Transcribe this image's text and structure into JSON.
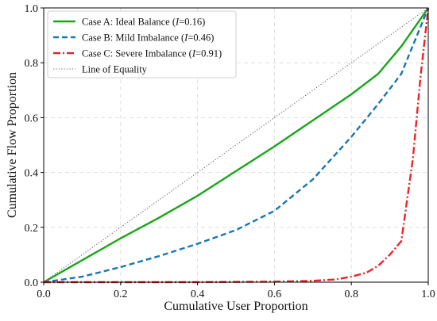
{
  "chart_data": {
    "type": "line",
    "xlabel": "Cumulative User Proportion",
    "ylabel": "Cumulative Flow Proportion",
    "xlim": [
      0,
      1
    ],
    "ylim": [
      0,
      1
    ],
    "xticks": [
      "0.0",
      "0.2",
      "0.4",
      "0.6",
      "0.8",
      "1.0"
    ],
    "yticks": [
      "0.0",
      "0.2",
      "0.4",
      "0.6",
      "0.8",
      "1.0"
    ],
    "grid": true,
    "legend_position": "top-left",
    "series": [
      {
        "name_prefix": "Case A: Ideal Balance (",
        "name_italic": "I",
        "name_suffix": "=0.16)",
        "color": "#1aa51a",
        "style": "solid",
        "x": [
          0,
          0.1,
          0.2,
          0.3,
          0.4,
          0.5,
          0.6,
          0.7,
          0.8,
          0.87,
          0.93,
          1.0
        ],
        "y": [
          0,
          0.08,
          0.16,
          0.235,
          0.315,
          0.405,
          0.495,
          0.59,
          0.685,
          0.76,
          0.86,
          1.0
        ]
      },
      {
        "name_prefix": "Case B: Mild Imbalance (",
        "name_italic": "I",
        "name_suffix": "=0.46)",
        "color": "#1a75b5",
        "style": "dashed",
        "x": [
          0,
          0.1,
          0.2,
          0.3,
          0.4,
          0.5,
          0.6,
          0.7,
          0.8,
          0.87,
          0.93,
          1.0
        ],
        "y": [
          0,
          0.02,
          0.055,
          0.095,
          0.14,
          0.19,
          0.26,
          0.375,
          0.53,
          0.65,
          0.76,
          1.0
        ]
      },
      {
        "name_prefix": "Case C: Severe Imbalance (",
        "name_italic": "I",
        "name_suffix": "=0.91)",
        "color": "#e8262a",
        "style": "dashdot",
        "x": [
          0,
          0.2,
          0.4,
          0.6,
          0.7,
          0.76,
          0.8,
          0.84,
          0.87,
          0.9,
          0.93,
          0.96,
          0.98,
          1.0
        ],
        "y": [
          0,
          0,
          0,
          0.002,
          0.005,
          0.01,
          0.02,
          0.035,
          0.06,
          0.1,
          0.15,
          0.45,
          0.75,
          1.0
        ]
      },
      {
        "name_prefix": "Line of Equality",
        "name_italic": "",
        "name_suffix": "",
        "color": "#666666",
        "style": "dotted",
        "x": [
          0,
          1
        ],
        "y": [
          0,
          1
        ]
      }
    ]
  }
}
